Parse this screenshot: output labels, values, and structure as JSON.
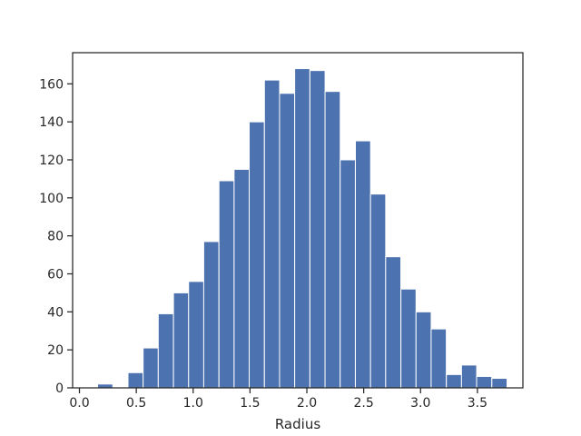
{
  "chart_data": {
    "type": "bar",
    "title": "",
    "xlabel": "Radius",
    "ylabel": "",
    "xlim": [
      -0.06,
      3.9
    ],
    "ylim": [
      0,
      176.4
    ],
    "bin_width": 0.1333,
    "bins": [
      {
        "x0": 0.16,
        "count": 2
      },
      {
        "x0": 0.293,
        "count": 0
      },
      {
        "x0": 0.427,
        "count": 8
      },
      {
        "x0": 0.56,
        "count": 21
      },
      {
        "x0": 0.693,
        "count": 39
      },
      {
        "x0": 0.827,
        "count": 50
      },
      {
        "x0": 0.96,
        "count": 56
      },
      {
        "x0": 1.093,
        "count": 77
      },
      {
        "x0": 1.227,
        "count": 109
      },
      {
        "x0": 1.36,
        "count": 115
      },
      {
        "x0": 1.493,
        "count": 140
      },
      {
        "x0": 1.627,
        "count": 162
      },
      {
        "x0": 1.76,
        "count": 155
      },
      {
        "x0": 1.893,
        "count": 168
      },
      {
        "x0": 2.027,
        "count": 167
      },
      {
        "x0": 2.16,
        "count": 156
      },
      {
        "x0": 2.293,
        "count": 120
      },
      {
        "x0": 2.427,
        "count": 130
      },
      {
        "x0": 2.56,
        "count": 102
      },
      {
        "x0": 2.693,
        "count": 69
      },
      {
        "x0": 2.827,
        "count": 52
      },
      {
        "x0": 2.96,
        "count": 40
      },
      {
        "x0": 3.093,
        "count": 31
      },
      {
        "x0": 3.227,
        "count": 7
      },
      {
        "x0": 3.36,
        "count": 12
      },
      {
        "x0": 3.493,
        "count": 6
      },
      {
        "x0": 3.627,
        "count": 5
      }
    ],
    "x_ticks": [
      {
        "value": 0.0,
        "label": "0.0"
      },
      {
        "value": 0.5,
        "label": "0.5"
      },
      {
        "value": 1.0,
        "label": "1.0"
      },
      {
        "value": 1.5,
        "label": "1.5"
      },
      {
        "value": 2.0,
        "label": "2.0"
      },
      {
        "value": 2.5,
        "label": "2.5"
      },
      {
        "value": 3.0,
        "label": "3.0"
      },
      {
        "value": 3.5,
        "label": "3.5"
      }
    ],
    "y_ticks": [
      {
        "value": 0,
        "label": "0"
      },
      {
        "value": 20,
        "label": "20"
      },
      {
        "value": 40,
        "label": "40"
      },
      {
        "value": 60,
        "label": "60"
      },
      {
        "value": 80,
        "label": "80"
      },
      {
        "value": 100,
        "label": "100"
      },
      {
        "value": 120,
        "label": "120"
      },
      {
        "value": 140,
        "label": "140"
      },
      {
        "value": 160,
        "label": "160"
      }
    ],
    "grid": false,
    "colors": {
      "bar": "#4c72b0",
      "bar_edge": "#ffffff",
      "axes": "#262626"
    }
  }
}
